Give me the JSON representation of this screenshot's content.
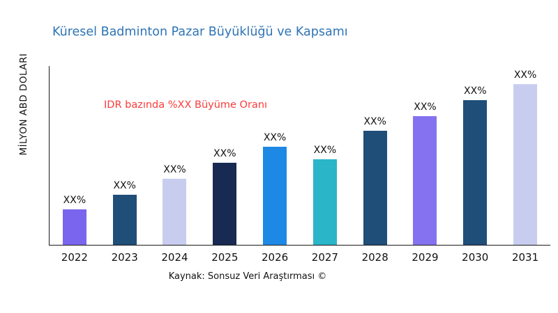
{
  "title": "Küresel Badminton Pazar Büyüklüğü ve Kapsamı",
  "ylabel": "MİLYON ABD DOLARI",
  "annotation": "IDR bazında %XX Büyüme Oranı",
  "source": "Kaynak: Sonsuz Veri Araştırması ©",
  "colors": {
    "title": "#2e74b5",
    "annotation": "#fb3a3a",
    "axis": "#1a1a1a"
  },
  "chart_data": {
    "type": "bar",
    "title": "Küresel Badminton Pazar Büyüklüğü ve Kapsamı",
    "xlabel": "",
    "ylabel": "MİLYON ABD DOLARI",
    "categories": [
      "2022",
      "2023",
      "2024",
      "2025",
      "2026",
      "2027",
      "2028",
      "2029",
      "2030",
      "2031"
    ],
    "values": [
      20,
      28,
      37,
      46,
      55,
      48,
      64,
      72,
      81,
      90
    ],
    "bar_labels": [
      "XX%",
      "XX%",
      "XX%",
      "XX%",
      "XX%",
      "XX%",
      "XX%",
      "XX%",
      "XX%",
      "XX%"
    ],
    "bar_colors": [
      "#7a66ee",
      "#1f4e79",
      "#c8cdf0",
      "#182a52",
      "#1e88e5",
      "#2ab5c8",
      "#1f4e79",
      "#8472f0",
      "#1f4e79",
      "#c8cdf0"
    ],
    "ylim": [
      0,
      100
    ],
    "grid": false,
    "legend": false,
    "annotation": "IDR bazında %XX Büyüme Oranı"
  }
}
